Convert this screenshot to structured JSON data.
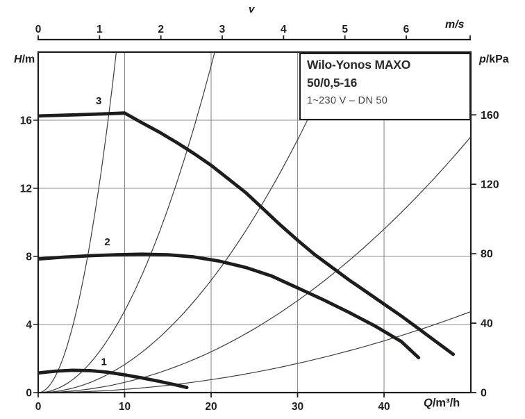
{
  "chart_data": {
    "type": "line",
    "title_box": {
      "line1": "Wilo-Yonos MAXO",
      "line2": "50/0,5-16",
      "line3": "1~230 V – DN 50"
    },
    "axes": {
      "top": {
        "title": "v",
        "unit": "m/s",
        "ticks": [
          "0",
          "1",
          "2",
          "3",
          "4",
          "5",
          "6"
        ],
        "tick_values": [
          0,
          1,
          2,
          3,
          4,
          5,
          6
        ],
        "q_per_unit": 7.0686
      },
      "bottom": {
        "unit": "Q/m³/h",
        "ticks": [
          "0",
          "10",
          "20",
          "30",
          "40"
        ],
        "tick_values": [
          0,
          10,
          20,
          30,
          40
        ],
        "range": [
          0,
          50
        ]
      },
      "left": {
        "unit": "H/m",
        "ticks": [
          "0",
          "4",
          "8",
          "12",
          "16"
        ],
        "tick_values": [
          0,
          4,
          8,
          12,
          16
        ],
        "range": [
          0,
          20
        ]
      },
      "right": {
        "unit": "p/kPa",
        "ticks": [
          "0",
          "40",
          "80",
          "120",
          "160"
        ],
        "tick_values": [
          0,
          40,
          80,
          120,
          160
        ],
        "m_per_kpa": 0.10197
      }
    },
    "grid": {
      "x_lines": [
        10,
        20,
        30,
        40
      ],
      "y_lines": [
        4,
        8,
        12,
        16
      ]
    },
    "pump_curves": [
      {
        "label": "1",
        "label_pos": [
          7.6,
          1.82
        ],
        "points": [
          [
            0,
            1.15
          ],
          [
            2,
            1.26
          ],
          [
            4,
            1.31
          ],
          [
            6,
            1.29
          ],
          [
            8,
            1.2
          ],
          [
            10,
            1.04
          ],
          [
            12,
            0.86
          ],
          [
            14,
            0.66
          ],
          [
            16,
            0.44
          ],
          [
            17.2,
            0.3
          ]
        ]
      },
      {
        "label": "2",
        "label_pos": [
          8.0,
          8.85
        ],
        "points": [
          [
            0,
            7.85
          ],
          [
            3,
            7.96
          ],
          [
            6,
            8.04
          ],
          [
            9,
            8.1
          ],
          [
            12,
            8.13
          ],
          [
            15,
            8.1
          ],
          [
            18,
            7.97
          ],
          [
            21,
            7.72
          ],
          [
            24,
            7.35
          ],
          [
            27,
            6.85
          ],
          [
            30,
            6.15
          ],
          [
            33,
            5.45
          ],
          [
            36,
            4.7
          ],
          [
            39,
            3.9
          ],
          [
            42,
            3.0
          ],
          [
            44,
            2.05
          ]
        ]
      },
      {
        "label": "3",
        "label_pos": [
          7.0,
          17.15
        ],
        "points": [
          [
            0,
            16.25
          ],
          [
            4,
            16.31
          ],
          [
            8,
            16.38
          ],
          [
            10,
            16.42
          ],
          [
            12,
            15.85
          ],
          [
            14,
            15.3
          ],
          [
            16,
            14.7
          ],
          [
            18,
            14.05
          ],
          [
            20,
            13.35
          ],
          [
            22,
            12.55
          ],
          [
            24,
            11.75
          ],
          [
            26,
            10.8
          ],
          [
            28,
            9.85
          ],
          [
            30,
            8.95
          ],
          [
            32,
            8.1
          ],
          [
            34,
            7.35
          ],
          [
            36,
            6.6
          ],
          [
            38,
            5.9
          ],
          [
            40,
            5.2
          ],
          [
            42,
            4.5
          ],
          [
            44,
            3.75
          ],
          [
            46,
            3.0
          ],
          [
            48,
            2.25
          ]
        ]
      }
    ],
    "velocity_curves": [
      {
        "a": 0.245
      },
      {
        "a": 0.048
      },
      {
        "a": 0.0165
      },
      {
        "a": 0.006
      },
      {
        "a": 0.0019
      }
    ],
    "colors": {
      "curve": "#1d1d1b",
      "thin_curve": "#3d3d3c",
      "grid": "#8c8c8c",
      "axis": "#1d1d1b",
      "text": "#1d1d1b",
      "subtext": "#45453f",
      "background": "#ffffff"
    }
  }
}
